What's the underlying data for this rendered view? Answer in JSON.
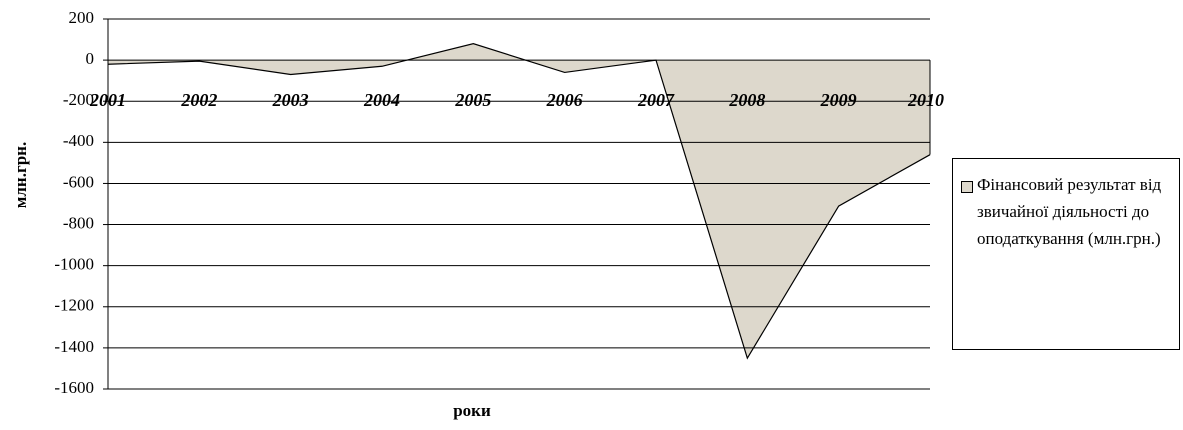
{
  "chart_data": {
    "type": "area",
    "x_label": "роки",
    "y_label": "млн.грн.",
    "categories": [
      "2001",
      "2002",
      "2003",
      "2004",
      "2005",
      "2006",
      "2007",
      "2008",
      "2009",
      "2010"
    ],
    "series": [
      {
        "name": "Фінансовий результат від звичайної діяльності до оподаткування (млн.грн.)",
        "color": "#ddd8cc",
        "values": [
          -20,
          -5,
          -70,
          -30,
          80,
          -60,
          0,
          -1450,
          -710,
          -460
        ]
      }
    ],
    "ylim": [
      -1600,
      200
    ],
    "yticks": [
      200,
      0,
      -200,
      -400,
      -600,
      -800,
      -1000,
      -1200,
      -1400,
      -1600
    ],
    "grid": true,
    "legend": "right"
  }
}
